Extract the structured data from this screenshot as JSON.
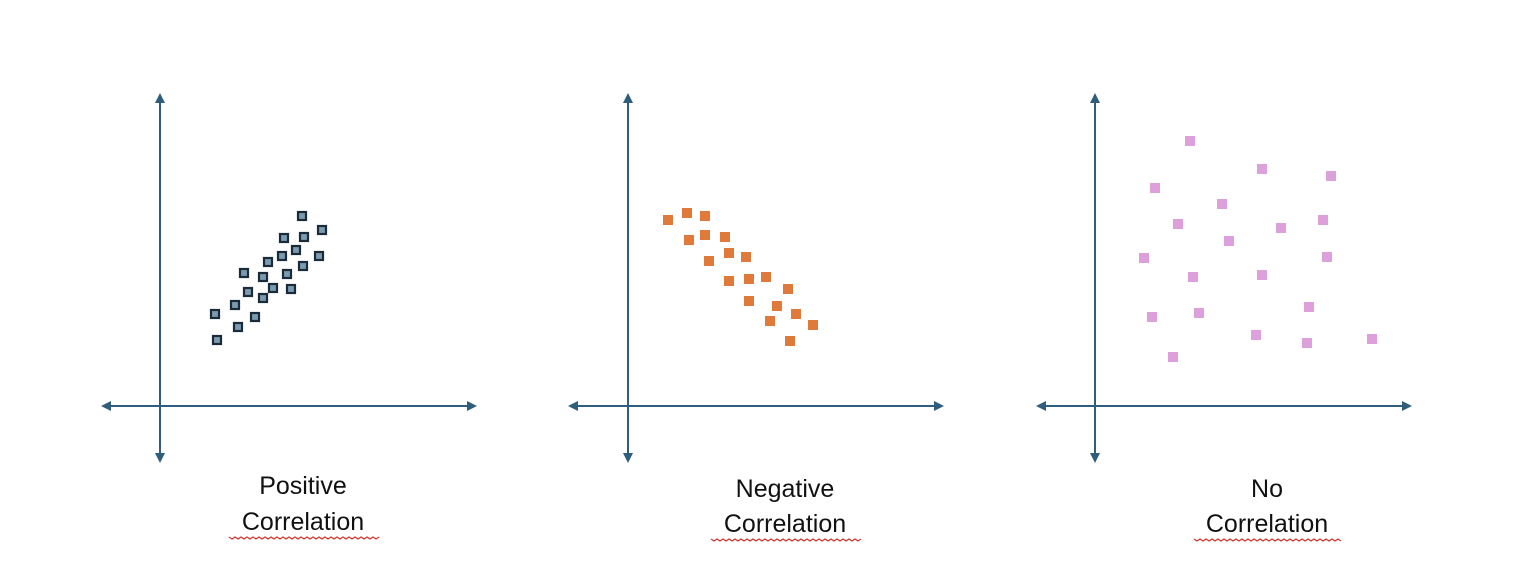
{
  "captions": [
    {
      "lines": [
        "Positive",
        "Correlation"
      ]
    },
    {
      "lines": [
        "Negative",
        "Correlation"
      ]
    },
    {
      "lines": [
        "No",
        "Correlation"
      ]
    }
  ]
}
